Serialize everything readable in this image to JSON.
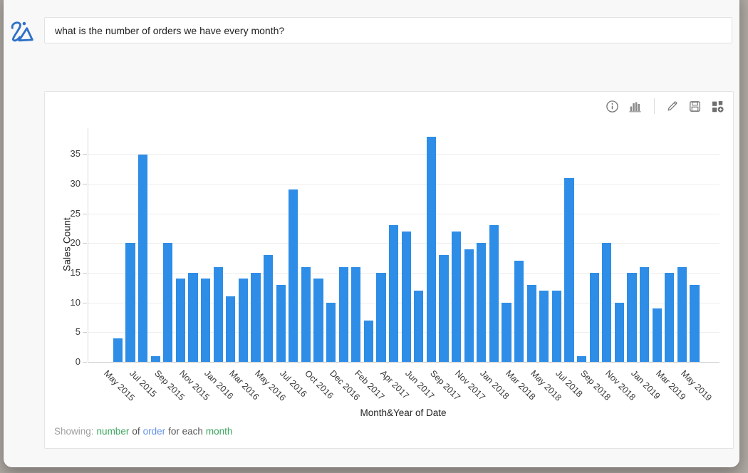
{
  "query_bar": {
    "query": "what is the number of orders we have every month?",
    "logo": "zia-logo"
  },
  "toolbar": {
    "icons": [
      "info-icon",
      "chart-type-icon",
      "edit-icon",
      "save-icon",
      "add-to-dashboard-icon"
    ]
  },
  "chart_data": {
    "type": "bar",
    "title": "",
    "xlabel": "Month&Year of Date",
    "ylabel": "Sales Count",
    "y_ticks": [
      0,
      5,
      10,
      15,
      20,
      25,
      30,
      35
    ],
    "ylim": [
      0,
      39.5
    ],
    "grid": true,
    "legend": false,
    "bar_color": "#2e8de6",
    "tick_every": 2,
    "n_bars": 47,
    "x_tick_labels": [
      "May 2015",
      "Jul 2015",
      "Sep 2015",
      "Nov 2015",
      "Jan 2016",
      "Mar 2016",
      "May 2016",
      "Jul 2016",
      "Oct 2016",
      "Dec 2016",
      "Feb 2017",
      "Apr 2017",
      "Jun 2017",
      "Sep 2017",
      "Nov 2017",
      "Jan 2018",
      "Mar 2018",
      "May 2018",
      "Jul 2018",
      "Sep 2018",
      "Nov 2018",
      "Jan 2019",
      "Mar 2019",
      "May 2019"
    ],
    "values": [
      4,
      20,
      35,
      1,
      20,
      14,
      15,
      14,
      16,
      11,
      14,
      15,
      18,
      13,
      29,
      16,
      14,
      10,
      16,
      16,
      7,
      15,
      23,
      22,
      12,
      38,
      18,
      22,
      19,
      20,
      23,
      10,
      17,
      13,
      12,
      12,
      31,
      1,
      15,
      20,
      10,
      15,
      16,
      9,
      15,
      16,
      13
    ]
  },
  "footer": {
    "showing_label": "Showing:",
    "measure": "number",
    "of_label": "of",
    "entity": "order",
    "for_each_label": "for each",
    "period": "month",
    "label_color": "#9e9e9e",
    "text_color": "#555555",
    "green_color": "#3aa55d",
    "blue_color": "#6292ea"
  }
}
